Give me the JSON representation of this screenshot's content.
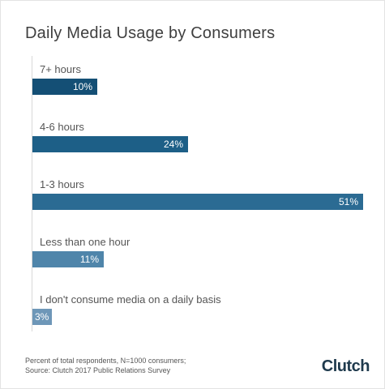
{
  "chart_data": {
    "type": "bar",
    "orientation": "horizontal",
    "title": "Daily Media Usage by Consumers",
    "categories": [
      "7+ hours",
      "4-6 hours",
      "1-3 hours",
      "Less than one hour",
      "I don't consume media on a daily basis"
    ],
    "values": [
      10,
      24,
      51,
      11,
      3
    ],
    "value_labels": [
      "10%",
      "24%",
      "51%",
      "11%",
      "3%"
    ],
    "unit": "%",
    "xlim": [
      0,
      51
    ],
    "grid": false,
    "legend": "none",
    "bar_colors": [
      "#144f75",
      "#1d5f87",
      "#2b6b93",
      "#4f85aa",
      "#6e97b8"
    ]
  },
  "footnote": {
    "line1": "Percent of total respondents, N=1000 consumers;",
    "line2": "Source: Clutch 2017 Public Relations Survey"
  },
  "logo_text": "Clutch"
}
